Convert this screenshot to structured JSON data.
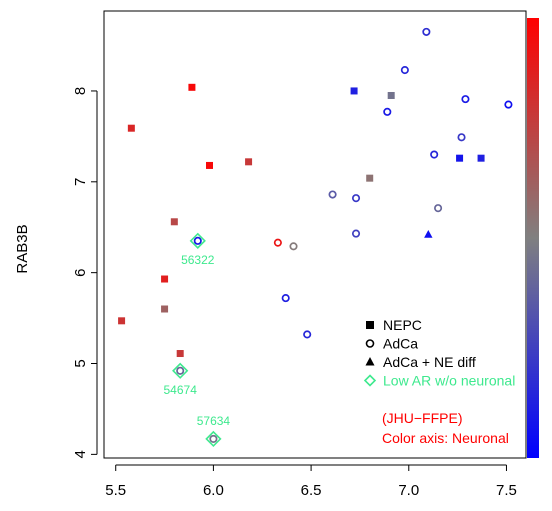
{
  "chart_data": {
    "type": "scatter",
    "title": "",
    "xlabel": "",
    "ylabel": "RAB3B",
    "xlim": [
      5.44,
      7.6
    ],
    "ylim": [
      3.96,
      8.88
    ],
    "x_ticks": [
      5.5,
      6.0,
      6.5,
      7.0,
      7.5
    ],
    "x_tick_labels": [
      "5.5",
      "6.0",
      "6.5",
      "7.0",
      "7.5"
    ],
    "y_ticks": [
      4,
      5,
      6,
      7,
      8
    ],
    "y_tick_labels": [
      "4",
      "5",
      "6",
      "7",
      "8"
    ],
    "grid": false,
    "legend_position": "bottom-right",
    "legend": [
      {
        "label": "NEPC",
        "marker": "square",
        "color": "#000000"
      },
      {
        "label": "AdCa",
        "marker": "circle",
        "color": "#000000"
      },
      {
        "label": "AdCa + NE diff",
        "marker": "triangle",
        "color": "#000000"
      },
      {
        "label": "Low AR w/o neuronal",
        "marker": "diamond",
        "color": "#3ee98e"
      }
    ],
    "annotations": [
      "(JHU−FFPE)",
      "Color axis: Neuronal"
    ],
    "colorbar": {
      "low_color": "#0000ff",
      "mid_color": "#808080",
      "high_color": "#ff0000",
      "ticks": []
    },
    "series": [
      {
        "group": "NEPC",
        "marker": "square",
        "points": [
          {
            "x": 5.89,
            "y": 8.04,
            "c": 0.97
          },
          {
            "x": 5.58,
            "y": 7.59,
            "c": 0.85
          },
          {
            "x": 5.98,
            "y": 7.18,
            "c": 0.97
          },
          {
            "x": 6.18,
            "y": 7.22,
            "c": 0.78
          },
          {
            "x": 5.8,
            "y": 6.56,
            "c": 0.72
          },
          {
            "x": 5.75,
            "y": 5.93,
            "c": 0.88
          },
          {
            "x": 5.75,
            "y": 5.6,
            "c": 0.62
          },
          {
            "x": 5.53,
            "y": 5.47,
            "c": 0.8
          },
          {
            "x": 5.83,
            "y": 5.11,
            "c": 0.78
          },
          {
            "x": 6.72,
            "y": 8.0,
            "c": 0.12
          },
          {
            "x": 6.91,
            "y": 7.95,
            "c": 0.45
          },
          {
            "x": 6.8,
            "y": 7.04,
            "c": 0.55
          },
          {
            "x": 7.26,
            "y": 7.26,
            "c": 0.08
          },
          {
            "x": 7.37,
            "y": 7.26,
            "c": 0.12
          }
        ]
      },
      {
        "group": "AdCa",
        "marker": "circle",
        "points": [
          {
            "x": 7.09,
            "y": 8.65,
            "c": 0.18
          },
          {
            "x": 6.98,
            "y": 8.23,
            "c": 0.15
          },
          {
            "x": 6.89,
            "y": 7.77,
            "c": 0.1
          },
          {
            "x": 7.29,
            "y": 7.91,
            "c": 0.1
          },
          {
            "x": 7.51,
            "y": 7.85,
            "c": 0.06
          },
          {
            "x": 7.27,
            "y": 7.49,
            "c": 0.22
          },
          {
            "x": 7.13,
            "y": 7.3,
            "c": 0.15
          },
          {
            "x": 6.61,
            "y": 6.86,
            "c": 0.35
          },
          {
            "x": 6.73,
            "y": 6.82,
            "c": 0.22
          },
          {
            "x": 7.15,
            "y": 6.71,
            "c": 0.4
          },
          {
            "x": 6.73,
            "y": 6.43,
            "c": 0.25
          },
          {
            "x": 6.33,
            "y": 6.33,
            "c": 0.92
          },
          {
            "x": 6.41,
            "y": 6.29,
            "c": 0.52
          },
          {
            "x": 6.37,
            "y": 5.72,
            "c": 0.12
          },
          {
            "x": 6.48,
            "y": 5.32,
            "c": 0.15
          }
        ]
      },
      {
        "group": "AdCa + NE diff",
        "marker": "triangle",
        "points": [
          {
            "x": 7.1,
            "y": 6.42,
            "c": 0.06
          }
        ]
      },
      {
        "group": "Low AR w/o neuronal",
        "marker": "diamond-circle",
        "points": [
          {
            "x": 5.92,
            "y": 6.35,
            "c": 0.1,
            "label": "56322"
          },
          {
            "x": 5.83,
            "y": 4.92,
            "c": 0.4,
            "label": "54674"
          },
          {
            "x": 6.0,
            "y": 4.17,
            "c": 0.45,
            "label": "57634"
          }
        ]
      }
    ]
  }
}
